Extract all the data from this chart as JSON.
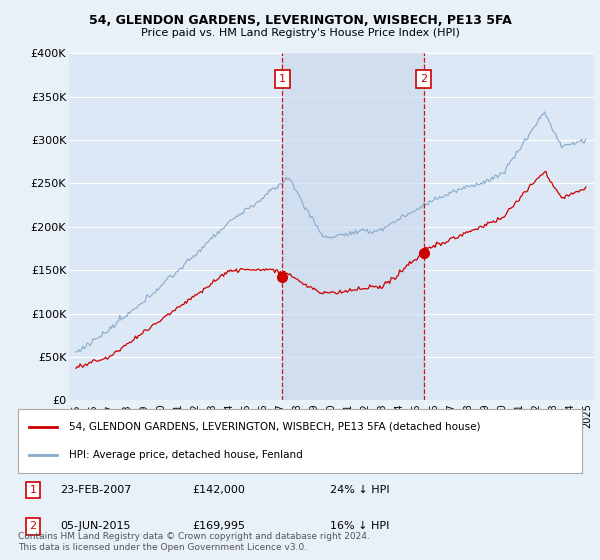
{
  "title": "54, GLENDON GARDENS, LEVERINGTON, WISBECH, PE13 5FA",
  "subtitle": "Price paid vs. HM Land Registry's House Price Index (HPI)",
  "bg_color": "#e8f0f8",
  "plot_bg": "#dce8f5",
  "red_label": "54, GLENDON GARDENS, LEVERINGTON, WISBECH, PE13 5FA (detached house)",
  "blue_label": "HPI: Average price, detached house, Fenland",
  "transaction1_date": "23-FEB-2007",
  "transaction1_price": "£142,000",
  "transaction1_note": "24% ↓ HPI",
  "transaction1_year": 2007.12,
  "transaction1_value": 142000,
  "transaction2_date": "05-JUN-2015",
  "transaction2_price": "£169,995",
  "transaction2_note": "16% ↓ HPI",
  "transaction2_year": 2015.42,
  "transaction2_value": 169995,
  "footer": "Contains HM Land Registry data © Crown copyright and database right 2024.\nThis data is licensed under the Open Government Licence v3.0.",
  "ylim": [
    0,
    400000
  ],
  "yticks": [
    0,
    50000,
    100000,
    150000,
    200000,
    250000,
    300000,
    350000,
    400000
  ],
  "ytick_labels": [
    "£0",
    "£50K",
    "£100K",
    "£150K",
    "£200K",
    "£250K",
    "£300K",
    "£350K",
    "£400K"
  ],
  "red_color": "#cc0000",
  "blue_color": "#88aacc",
  "vline_color": "#cc0000",
  "shade_color": "#c8d8ee",
  "grid_color": "#cccccc"
}
